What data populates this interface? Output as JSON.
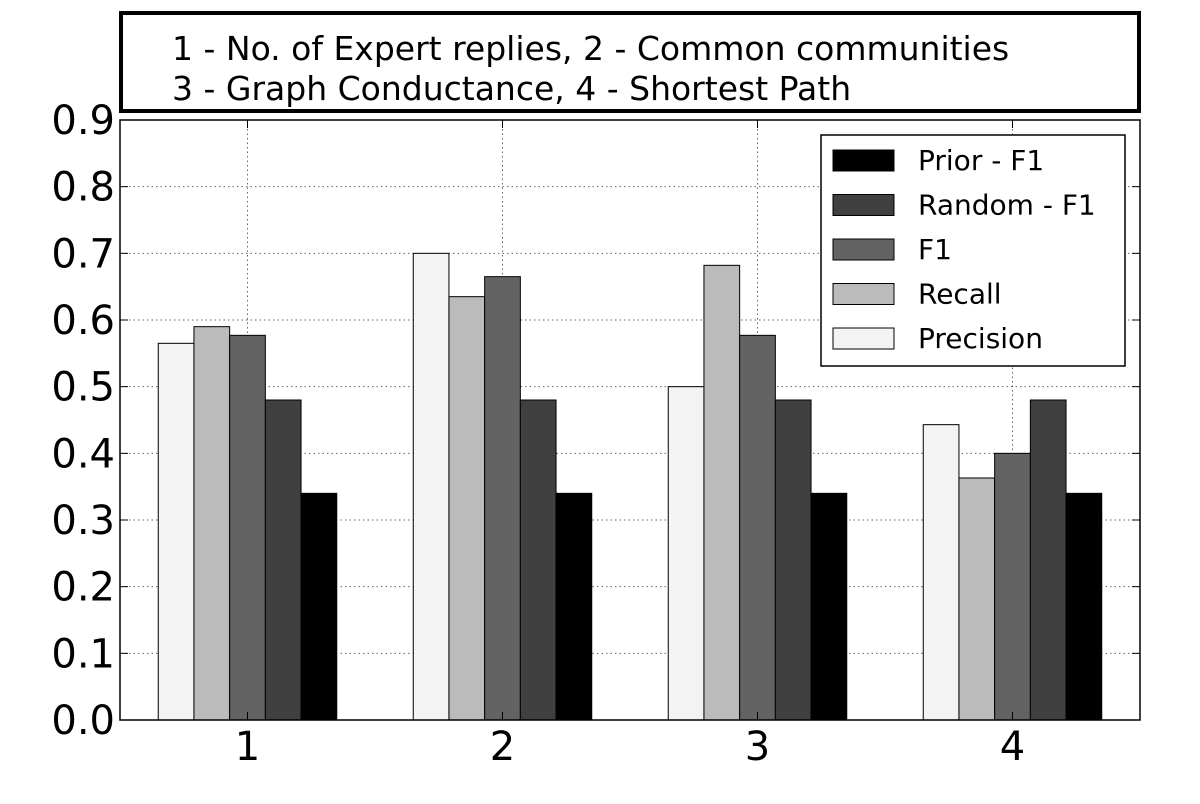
{
  "chart_data": {
    "type": "bar",
    "title_lines": [
      "1 - No. of Expert replies, 2 - Common communities",
      "3 - Graph Conductance, 4 - Shortest Path"
    ],
    "categories": [
      "1",
      "2",
      "3",
      "4"
    ],
    "series": [
      {
        "name": "Precision",
        "color": "#f3f3f3",
        "values": [
          0.565,
          0.7,
          0.5,
          0.443
        ]
      },
      {
        "name": "Recall",
        "color": "#bbbbbb",
        "values": [
          0.59,
          0.635,
          0.682,
          0.363
        ]
      },
      {
        "name": "F1",
        "color": "#636363",
        "values": [
          0.577,
          0.665,
          0.577,
          0.4
        ]
      },
      {
        "name": "Random - F1",
        "color": "#404040",
        "values": [
          0.48,
          0.48,
          0.48,
          0.48
        ]
      },
      {
        "name": "Prior - F1",
        "color": "#000000",
        "values": [
          0.34,
          0.34,
          0.34,
          0.34
        ]
      }
    ],
    "legend_order": [
      "Prior - F1",
      "Random - F1",
      "F1",
      "Recall",
      "Precision"
    ],
    "legend_position": "top-right",
    "ylim": [
      0,
      0.9
    ],
    "yticks": [
      "0.0",
      "0.1",
      "0.2",
      "0.3",
      "0.4",
      "0.5",
      "0.6",
      "0.7",
      "0.8",
      "0.9"
    ],
    "xlabel": "",
    "ylabel": "",
    "grid": true
  }
}
